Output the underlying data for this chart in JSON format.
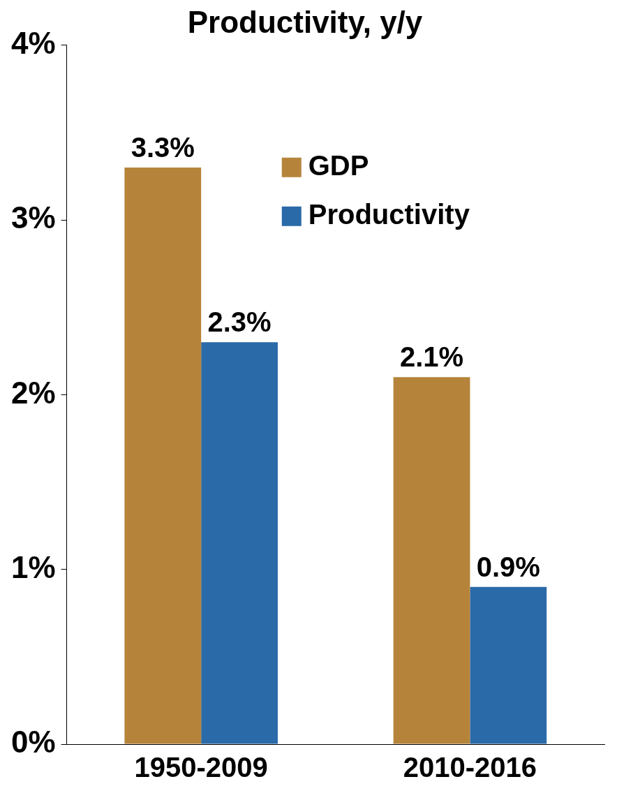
{
  "chart_data": {
    "type": "bar",
    "title": "Productivity, y/y",
    "categories": [
      "1950-2009",
      "2010-2016"
    ],
    "series": [
      {
        "name": "GDP",
        "color": "#b5843a",
        "values": [
          3.3,
          2.1
        ],
        "value_labels": [
          "3.3%",
          "2.1%"
        ]
      },
      {
        "name": "Productivity",
        "color": "#2a6aa8",
        "values": [
          2.3,
          0.9
        ],
        "value_labels": [
          "2.3%",
          "0.9%"
        ]
      }
    ],
    "ylim": [
      0,
      4
    ],
    "yticks": [
      {
        "value": 0,
        "label": "0%"
      },
      {
        "value": 1,
        "label": "1%"
      },
      {
        "value": 2,
        "label": "2%"
      },
      {
        "value": 3,
        "label": "3%"
      },
      {
        "value": 4,
        "label": "4%"
      }
    ],
    "grid": false,
    "legend": "top right"
  }
}
